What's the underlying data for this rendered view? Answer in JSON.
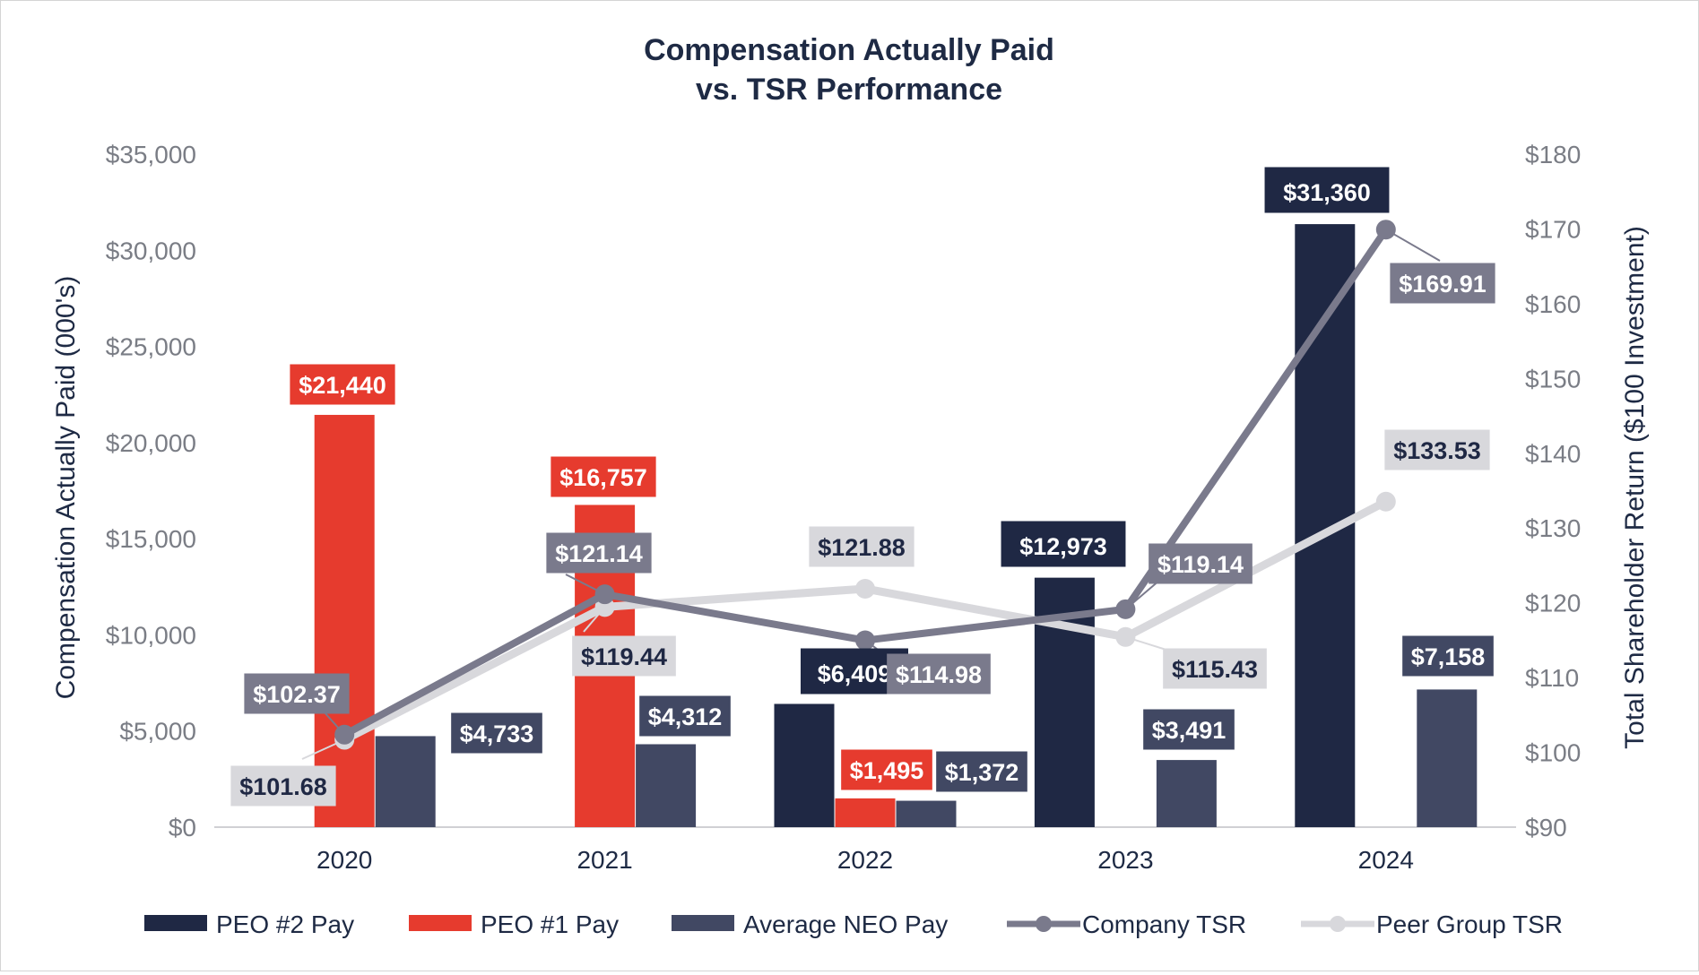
{
  "chart_data": {
    "type": "bar",
    "title_line1": "Compensation Actually Paid",
    "title_line2": "vs. TSR Performance",
    "ylabel": "Compensation Actually Paid (000's)",
    "y2label": "Total Shareholder Return ($100 Investment)",
    "ylim": [
      0,
      35000
    ],
    "y2lim": [
      90,
      180
    ],
    "yticks": [
      "$0",
      "$5,000",
      "$10,000",
      "$15,000",
      "$20,000",
      "$25,000",
      "$30,000",
      "$35,000"
    ],
    "y2ticks": [
      "$90",
      "$100",
      "$110",
      "$120",
      "$130",
      "$140",
      "$150",
      "$160",
      "$170",
      "$180"
    ],
    "categories": [
      "2020",
      "2021",
      "2022",
      "2023",
      "2024"
    ],
    "bar_series": [
      {
        "name": "PEO #2 Pay",
        "color": "#1f2844",
        "values": [
          null,
          null,
          6409,
          12973,
          31360
        ],
        "labels": [
          "",
          "",
          "$6,409",
          "$12,973",
          "$31,360"
        ]
      },
      {
        "name": "PEO #1 Pay",
        "color": "#e63b2e",
        "values": [
          21440,
          16757,
          1495,
          null,
          null
        ],
        "labels": [
          "$21,440",
          "$16,757",
          "$1,495",
          "",
          ""
        ]
      },
      {
        "name": "Average NEO Pay",
        "color": "#414863",
        "values": [
          4733,
          4312,
          1372,
          3491,
          7158
        ],
        "labels": [
          "$4,733",
          "$4,312",
          "$1,372",
          "$3,491",
          "$7,158"
        ]
      }
    ],
    "line_series": [
      {
        "name": "Company TSR",
        "color": "#7a7a8c",
        "values": [
          102.37,
          121.14,
          114.98,
          119.14,
          169.91
        ],
        "labels": [
          "$102.37",
          "$121.14",
          "$114.98",
          "$119.14",
          "$169.91"
        ]
      },
      {
        "name": "Peer Group TSR",
        "color": "#d8d8dc",
        "values": [
          101.68,
          119.44,
          121.88,
          115.43,
          133.53
        ],
        "labels": [
          "$101.68",
          "$119.44",
          "$121.88",
          "$115.43",
          "$133.53"
        ]
      }
    ],
    "legend": [
      "PEO #2 Pay",
      "PEO #1 Pay",
      "Average NEO Pay",
      "Company TSR",
      "Peer Group TSR"
    ],
    "legend_position": "bottom",
    "grid": false
  }
}
